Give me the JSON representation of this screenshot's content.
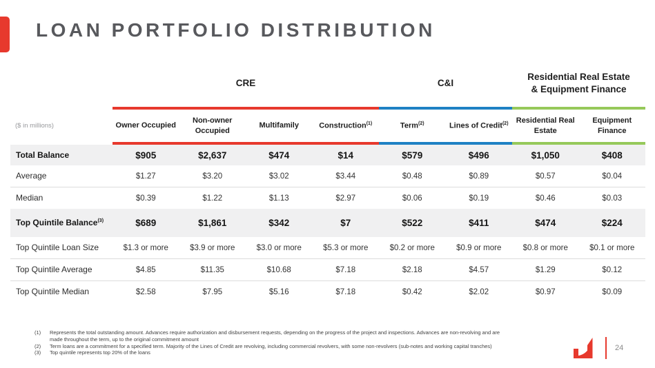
{
  "slide": {
    "title": "LOAN PORTFOLIO DISTRIBUTION",
    "units_note": "($ in millions)",
    "page_number": "24"
  },
  "colors": {
    "red": "#E7392D",
    "blue": "#1E81C4",
    "green": "#96C95A",
    "shaded_row": "#F0F0F1"
  },
  "icons": {
    "company_logo": "red stylized M-swoosh mark"
  },
  "table": {
    "groups": [
      {
        "label": "CRE",
        "span": 4,
        "color": "#E7392D"
      },
      {
        "label": "C&I",
        "span": 2,
        "color": "#1E81C4"
      },
      {
        "label": "Residential Real Estate & Equipment Finance",
        "span": 2,
        "color": "#96C95A"
      }
    ],
    "columns": [
      {
        "label": "Owner Occupied",
        "sup": ""
      },
      {
        "label": "Non-owner Occupied",
        "sup": ""
      },
      {
        "label": "Multifamily",
        "sup": ""
      },
      {
        "label": "Construction",
        "sup": "(1)"
      },
      {
        "label": "Term",
        "sup": "(2)"
      },
      {
        "label": "Lines of Credit",
        "sup": "(2)"
      },
      {
        "label": "Residential Real Estate",
        "sup": ""
      },
      {
        "label": "Equipment Finance",
        "sup": ""
      }
    ],
    "rows": [
      {
        "label": "Total Balance",
        "sup": "",
        "emphasis": true,
        "tall": false,
        "values": [
          "$905",
          "$2,637",
          "$474",
          "$14",
          "$579",
          "$496",
          "$1,050",
          "$408"
        ]
      },
      {
        "label": "Average",
        "sup": "",
        "emphasis": false,
        "tall": false,
        "values": [
          "$1.27",
          "$3.20",
          "$3.02",
          "$3.44",
          "$0.48",
          "$0.89",
          "$0.57",
          "$0.04"
        ]
      },
      {
        "label": "Median",
        "sup": "",
        "emphasis": false,
        "tall": false,
        "values": [
          "$0.39",
          "$1.22",
          "$1.13",
          "$2.97",
          "$0.06",
          "$0.19",
          "$0.46",
          "$0.03"
        ]
      },
      {
        "label": "Top Quintile Balance",
        "sup": "(3)",
        "emphasis": true,
        "tall": true,
        "values": [
          "$689",
          "$1,861",
          "$342",
          "$7",
          "$522",
          "$411",
          "$474",
          "$224"
        ]
      },
      {
        "label": "Top Quintile Loan Size",
        "sup": "",
        "emphasis": false,
        "tall": false,
        "values": [
          "$1.3 or more",
          "$3.9 or more",
          "$3.0 or more",
          "$5.3 or more",
          "$0.2 or more",
          "$0.9 or more",
          "$0.8 or more",
          "$0.1 or more"
        ]
      },
      {
        "label": "Top Quintile Average",
        "sup": "",
        "emphasis": false,
        "tall": false,
        "values": [
          "$4.85",
          "$11.35",
          "$10.68",
          "$7.18",
          "$2.18",
          "$4.57",
          "$1.29",
          "$0.12"
        ]
      },
      {
        "label": "Top Quintile Median",
        "sup": "",
        "emphasis": false,
        "tall": false,
        "values": [
          "$2.58",
          "$7.95",
          "$5.16",
          "$7.18",
          "$0.42",
          "$2.02",
          "$0.97",
          "$0.09"
        ]
      }
    ]
  },
  "footnotes": [
    {
      "num": "(1)",
      "text": "Represents the total outstanding amount. Advances require authorization and disbursement requests, depending on the progress of the project and inspections. Advances are non-revolving and are made throughout the term, up to the original commitment amount"
    },
    {
      "num": "(2)",
      "text": "Term loans are a commitment for a specified term. Majority of the Lines of Credit are revolving, including commercial revolvers, with some non-revolvers (sub-notes and working capital tranches)"
    },
    {
      "num": "(3)",
      "text": "Top quintile represents top 20% of the loans"
    }
  ]
}
